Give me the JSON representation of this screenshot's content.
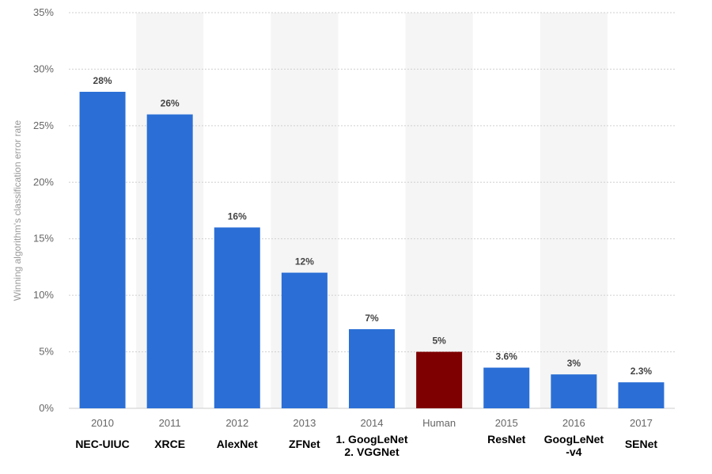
{
  "chart_data": {
    "type": "bar",
    "ylabel": "Winning algorithm's classification error rate",
    "ylim": [
      0,
      35
    ],
    "yticks": [
      "0%",
      "5%",
      "10%",
      "15%",
      "20%",
      "25%",
      "30%",
      "35%"
    ],
    "ytick_values": [
      0,
      5,
      10,
      15,
      20,
      25,
      30,
      35
    ],
    "categories": [
      "2010",
      "2011",
      "2012",
      "2013",
      "2014",
      "Human",
      "2015",
      "2016",
      "2017"
    ],
    "values": [
      28,
      26,
      16,
      12,
      7,
      5,
      3.6,
      3,
      2.3
    ],
    "value_labels": [
      "28%",
      "26%",
      "16%",
      "12%",
      "7%",
      "5%",
      "3.6%",
      "3%",
      "2.3%"
    ],
    "bar_colors": [
      "#2b6fd6",
      "#2b6fd6",
      "#2b6fd6",
      "#2b6fd6",
      "#2b6fd6",
      "#7f0000",
      "#2b6fd6",
      "#2b6fd6",
      "#2b6fd6"
    ],
    "grid": true,
    "alternating_band_color": "#f5f5f5"
  },
  "model_names": [
    [
      "NEC-UIUC"
    ],
    [
      "XRCE"
    ],
    [
      "AlexNet"
    ],
    [
      "ZFNet"
    ],
    [
      "1. GoogLeNet",
      "2. VGGNet"
    ],
    [],
    [
      "ResNet"
    ],
    [
      "GoogLeNet",
      "-v4"
    ],
    [
      "SENet"
    ]
  ]
}
